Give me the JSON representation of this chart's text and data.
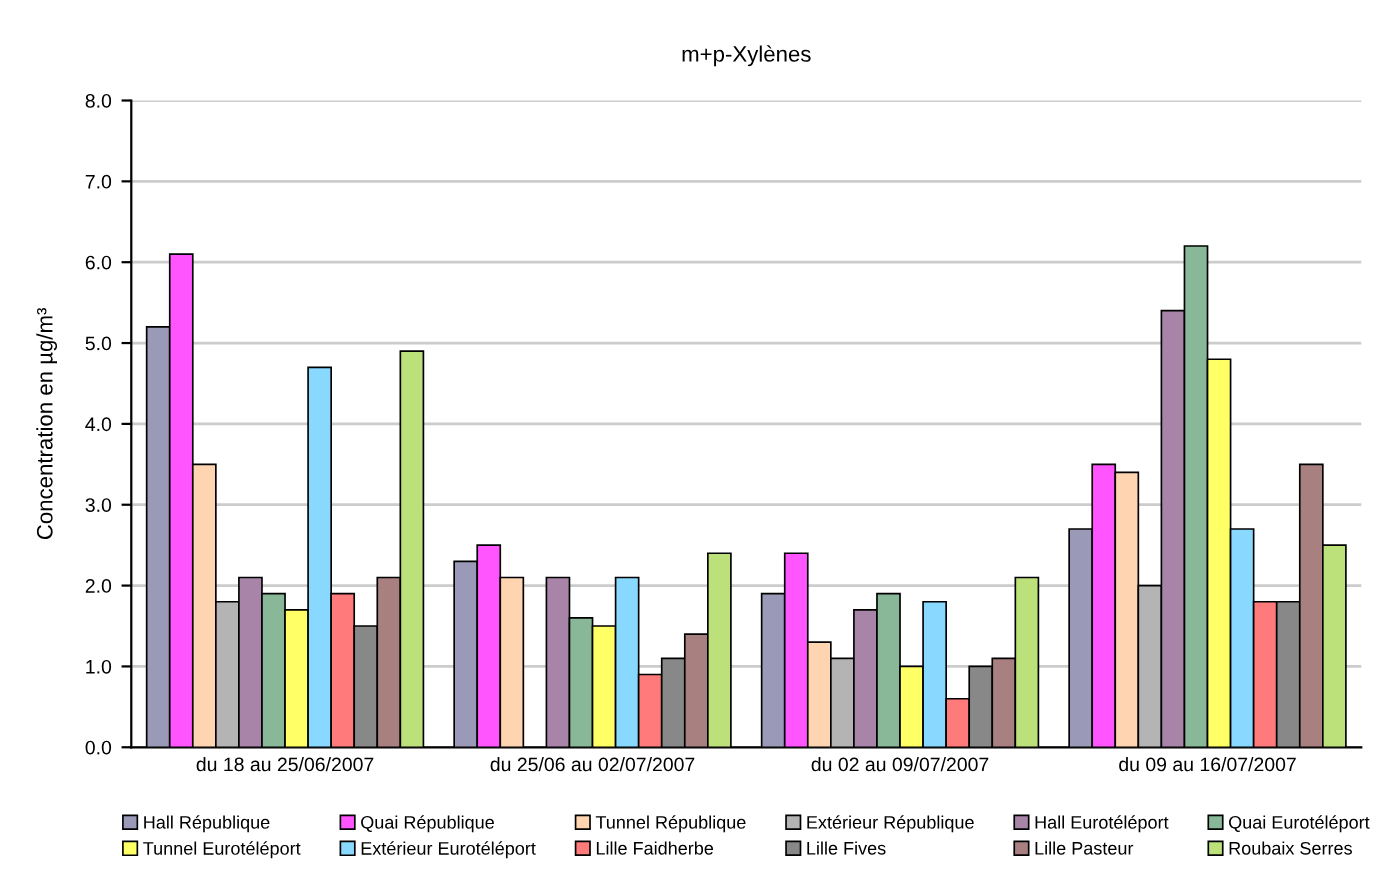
{
  "chart_data": {
    "type": "bar",
    "title": "m+p-Xylènes",
    "ylabel": "Concentration en µg/m³",
    "categories": [
      "du 18 au 25/06/2007",
      "du 25/06 au 02/07/2007",
      "du 02 au 09/07/2007",
      "du 09 au 16/07/2007"
    ],
    "ylim": [
      0,
      8
    ],
    "yticks": [
      {
        "value": 0,
        "label": "0.0"
      },
      {
        "value": 1,
        "label": "1.0"
      },
      {
        "value": 2,
        "label": "2.0"
      },
      {
        "value": 3,
        "label": "3.0"
      },
      {
        "value": 4,
        "label": "4.0"
      },
      {
        "value": 5,
        "label": "5.0"
      },
      {
        "value": 6,
        "label": "6.0"
      },
      {
        "value": 7,
        "label": "7.0"
      },
      {
        "value": 8,
        "label": "8.0"
      }
    ],
    "grid": "y",
    "legend": "bottom",
    "series": [
      {
        "name": "Hall République",
        "color": "#9a9ab8",
        "values": [
          5.2,
          2.3,
          1.9,
          2.7
        ]
      },
      {
        "name": "Quai République",
        "color": "#ff55ff",
        "values": [
          6.1,
          2.5,
          2.4,
          3.5
        ]
      },
      {
        "name": "Tunnel République",
        "color": "#ffd4b0",
        "values": [
          3.5,
          2.1,
          1.3,
          3.4
        ]
      },
      {
        "name": "Extérieur République",
        "color": "#b4b4b4",
        "values": [
          1.8,
          null,
          1.1,
          2.0
        ]
      },
      {
        "name": "Hall Eurotéléport",
        "color": "#a884a8",
        "values": [
          2.1,
          2.1,
          1.7,
          5.4
        ]
      },
      {
        "name": "Quai Eurotéléport",
        "color": "#88b898",
        "values": [
          1.9,
          1.6,
          1.9,
          6.2
        ]
      },
      {
        "name": "Tunnel Eurotéléport",
        "color": "#ffff66",
        "values": [
          1.7,
          1.5,
          1.0,
          4.8
        ]
      },
      {
        "name": "Extérieur Eurotéléport",
        "color": "#88d8ff",
        "values": [
          4.7,
          2.1,
          1.8,
          2.7
        ]
      },
      {
        "name": "Lille Faidherbe",
        "color": "#ff7a7a",
        "values": [
          1.9,
          0.9,
          0.6,
          1.8
        ]
      },
      {
        "name": "Lille Fives",
        "color": "#888888",
        "values": [
          1.5,
          1.1,
          1.0,
          1.8
        ]
      },
      {
        "name": "Lille Pasteur",
        "color": "#a88080",
        "values": [
          2.1,
          1.4,
          1.1,
          3.5
        ]
      },
      {
        "name": "Roubaix Serres",
        "color": "#bce07a",
        "values": [
          4.9,
          2.4,
          2.1,
          2.5
        ]
      }
    ]
  }
}
